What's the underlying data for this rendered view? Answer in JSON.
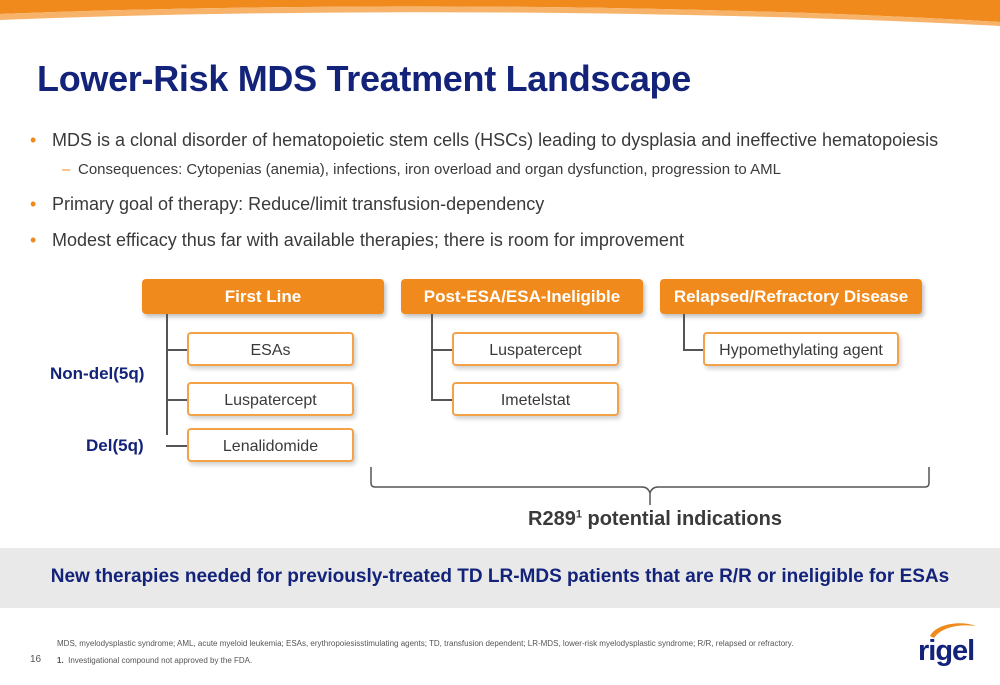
{
  "title": "Lower-Risk MDS Treatment Landscape",
  "bullets": [
    {
      "text": "MDS is a clonal disorder of hematopoietic stem cells (HSCs) leading to dysplasia and ineffective hematopoiesis"
    },
    {
      "text": "Consequences: Cytopenias (anemia), infections, iron overload and organ dysfunction, progression to AML"
    },
    {
      "text": "Primary goal of therapy: Reduce/limit transfusion-dependency"
    },
    {
      "text": "Modest efficacy thus far with available therapies; there is room for improvement"
    }
  ],
  "columns": [
    {
      "header": "First Line",
      "items": [
        "ESAs",
        "Luspatercept",
        "Lenalidomide"
      ]
    },
    {
      "header": "Post-ESA/ESA-Ineligible",
      "items": [
        "Luspatercept",
        "Imetelstat"
      ]
    },
    {
      "header": "Relapsed/Refractory Disease",
      "items": [
        "Hypomethylating agent"
      ]
    }
  ],
  "row_labels": {
    "non_del": "Non-del(5q)",
    "del": "Del(5q)"
  },
  "indication": {
    "label": "R289",
    "sup": "1",
    "suffix": " potential indications"
  },
  "banner": "New therapies needed for previously-treated TD LR-MDS patients that are R/R or ineligible for ESAs",
  "footnotes": {
    "abbrev": "MDS, myelodysplastic syndrome; AML, acute myeloid leukemia; ESAs, erythropoiesisstimulating agents; TD, transfusion dependent; LR-MDS, lower-risk myelodysplastic syndrome; R/R, relapsed or refractory.",
    "note_num": "1.",
    "note": "Investigational compound not approved by the FDA."
  },
  "page_number": "16",
  "logo": {
    "text": "rigel",
    "icon": "rigel-swoosh-logo",
    "color": "#13237a"
  },
  "colors": {
    "accent": "#f08a1c",
    "navy": "#13237a"
  }
}
